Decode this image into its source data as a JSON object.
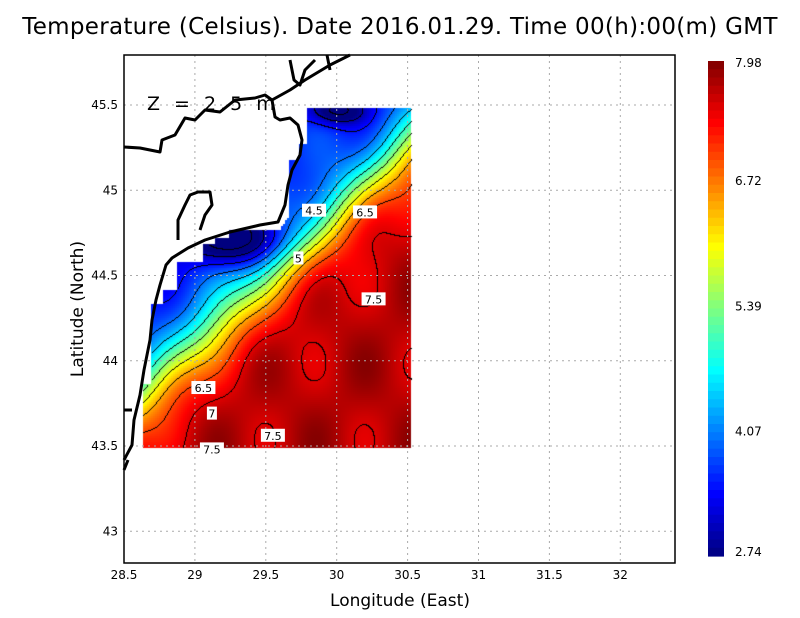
{
  "chart_data": {
    "type": "heatmap",
    "title": "Temperature (Celsius). Date 2016.01.29. Time 00(h):00(m)  GMT",
    "annotation": "Z = 2.5 m",
    "xlabel": "Longitude (East)",
    "ylabel": "Latitude (North)",
    "xlim": [
      28.5,
      32.85
    ],
    "ylim": [
      42.8,
      45.8
    ],
    "xticks": [
      "28.5",
      "29",
      "29.5",
      "30",
      "30.5",
      "31",
      "31.5",
      "32"
    ],
    "yticks": [
      "43",
      "43.5",
      "44",
      "44.5",
      "45",
      "45.5"
    ],
    "grid": true,
    "data_extent": {
      "lon": [
        28.63,
        30.52
      ],
      "lat": [
        43.48,
        45.48
      ]
    },
    "colorbar": {
      "min": 2.74,
      "max": 7.98,
      "labels": [
        "7.98",
        "6.72",
        "5.39",
        "4.07",
        "2.74"
      ],
      "colormap": "jet",
      "placement": "right"
    },
    "contour_labels": [
      {
        "text": "4.5",
        "lon": 29.84,
        "lat": 44.88
      },
      {
        "text": "6.5",
        "lon": 30.2,
        "lat": 44.87
      },
      {
        "text": "5",
        "lon": 29.73,
        "lat": 44.6
      },
      {
        "text": "7.5",
        "lon": 30.26,
        "lat": 44.36
      },
      {
        "text": "6.5",
        "lon": 29.06,
        "lat": 43.84
      },
      {
        "text": "7",
        "lon": 29.12,
        "lat": 43.69
      },
      {
        "text": "7.5",
        "lon": 29.55,
        "lat": 43.56
      },
      {
        "text": "7.5",
        "lon": 29.12,
        "lat": 43.48
      }
    ]
  }
}
